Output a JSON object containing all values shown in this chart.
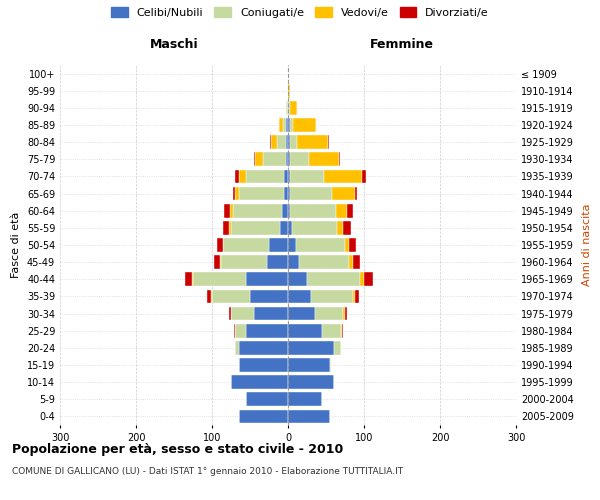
{
  "age_groups": [
    "0-4",
    "5-9",
    "10-14",
    "15-19",
    "20-24",
    "25-29",
    "30-34",
    "35-39",
    "40-44",
    "45-49",
    "50-54",
    "55-59",
    "60-64",
    "65-69",
    "70-74",
    "75-79",
    "80-84",
    "85-89",
    "90-94",
    "95-99",
    "100+"
  ],
  "birth_years": [
    "2005-2009",
    "2000-2004",
    "1995-1999",
    "1990-1994",
    "1985-1989",
    "1980-1984",
    "1975-1979",
    "1970-1974",
    "1965-1969",
    "1960-1964",
    "1955-1959",
    "1950-1954",
    "1945-1949",
    "1940-1944",
    "1935-1939",
    "1930-1934",
    "1925-1929",
    "1920-1924",
    "1915-1919",
    "1910-1914",
    "≤ 1909"
  ],
  "maschi": {
    "celibi": [
      65,
      55,
      75,
      65,
      65,
      55,
      45,
      50,
      55,
      28,
      25,
      10,
      8,
      5,
      5,
      3,
      2,
      2,
      0,
      0,
      0
    ],
    "coniugati": [
      0,
      0,
      0,
      0,
      5,
      15,
      30,
      50,
      70,
      60,
      60,
      65,
      65,
      60,
      50,
      30,
      12,
      5,
      2,
      0,
      0
    ],
    "vedovi": [
      0,
      0,
      0,
      0,
      0,
      0,
      0,
      1,
      1,
      1,
      1,
      2,
      3,
      5,
      10,
      10,
      8,
      5,
      0,
      0,
      0
    ],
    "divorziati": [
      0,
      0,
      0,
      0,
      0,
      1,
      2,
      5,
      10,
      8,
      8,
      8,
      8,
      3,
      5,
      2,
      2,
      0,
      0,
      0,
      0
    ]
  },
  "femmine": {
    "nubili": [
      55,
      45,
      60,
      55,
      60,
      45,
      35,
      30,
      25,
      15,
      10,
      5,
      3,
      3,
      2,
      2,
      2,
      2,
      0,
      0,
      0
    ],
    "coniugate": [
      0,
      0,
      0,
      2,
      10,
      25,
      38,
      55,
      70,
      65,
      65,
      60,
      60,
      55,
      45,
      25,
      10,
      5,
      2,
      0,
      0
    ],
    "vedove": [
      0,
      0,
      0,
      0,
      0,
      1,
      2,
      3,
      5,
      5,
      5,
      8,
      15,
      30,
      50,
      40,
      40,
      30,
      10,
      2,
      0
    ],
    "divorziate": [
      0,
      0,
      0,
      0,
      0,
      1,
      3,
      5,
      12,
      10,
      10,
      10,
      8,
      3,
      5,
      2,
      2,
      0,
      0,
      0,
      0
    ]
  },
  "colors": {
    "celibi": "#4472c4",
    "coniugati": "#c5d9a0",
    "vedovi": "#ffc000",
    "divorziati": "#cc0000"
  },
  "xlim": 300,
  "title": "Popolazione per età, sesso e stato civile - 2010",
  "subtitle": "COMUNE DI GALLICANO (LU) - Dati ISTAT 1° gennaio 2010 - Elaborazione TUTTITALIA.IT",
  "ylabel_left": "Fasce di età",
  "ylabel_right": "Anni di nascita",
  "xlabel_maschi": "Maschi",
  "xlabel_femmine": "Femmine",
  "legend_labels": [
    "Celibi/Nubili",
    "Coniugati/e",
    "Vedovi/e",
    "Divorziati/e"
  ],
  "xticks": [
    -300,
    -200,
    -100,
    0,
    100,
    200,
    300
  ]
}
